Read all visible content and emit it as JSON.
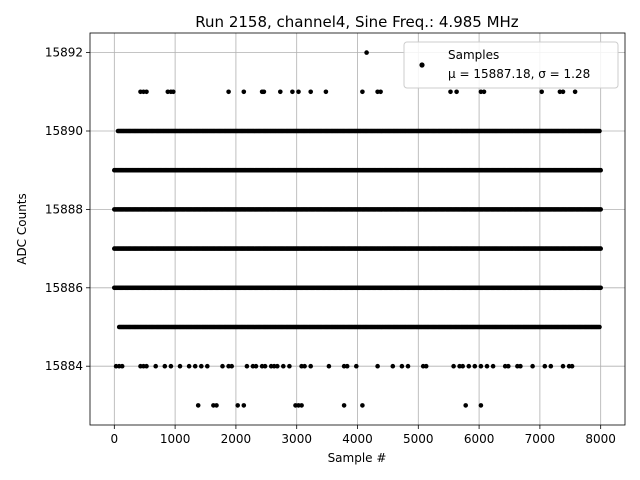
{
  "chart_data": {
    "type": "scatter",
    "title": "Run 2158, channel4, Sine Freq.: 4.985 MHz",
    "xlabel": "Sample #",
    "ylabel": "ADC Counts",
    "xlim": [
      -400,
      8400
    ],
    "ylim": [
      15882.5,
      15892.5
    ],
    "xticks": [
      0,
      1000,
      2000,
      3000,
      4000,
      5000,
      6000,
      7000,
      8000
    ],
    "xtick_labels": [
      "0",
      "1000",
      "2000",
      "3000",
      "4000",
      "5000",
      "6000",
      "7000",
      "8000"
    ],
    "yticks": [
      15884,
      15886,
      15888,
      15890,
      15892
    ],
    "ytick_labels": [
      "15884",
      "15886",
      "15888",
      "15890",
      "15892"
    ],
    "grid": true,
    "legend_position": "top-right",
    "marker_color": "#000000",
    "series": [
      {
        "name": "Samples",
        "stats_label": "μ = 15887.18, σ = 1.28",
        "x_range": [
          0,
          8000
        ],
        "dense_levels": [
          {
            "y": 15885,
            "x_start": 80,
            "x_end": 7980
          },
          {
            "y": 15886,
            "x_start": 0,
            "x_end": 8000
          },
          {
            "y": 15887,
            "x_start": 0,
            "x_end": 8000
          },
          {
            "y": 15888,
            "x_start": 0,
            "x_end": 8000
          },
          {
            "y": 15889,
            "x_start": 0,
            "x_end": 8000
          },
          {
            "y": 15890,
            "x_start": 60,
            "x_end": 7990
          }
        ],
        "sparse_points": {
          "15892": [
            4150
          ],
          "15891": [
            430,
            480,
            530,
            880,
            930,
            970,
            1880,
            2130,
            2430,
            2460,
            2730,
            2930,
            3030,
            3230,
            3480,
            4080,
            4330,
            4380,
            5530,
            5630,
            6030,
            6080,
            7030,
            7330,
            7380,
            7580
          ],
          "15884": [
            30,
            80,
            130,
            430,
            480,
            530,
            680,
            830,
            930,
            1080,
            1230,
            1330,
            1430,
            1530,
            1780,
            1880,
            1930,
            2180,
            2280,
            2330,
            2430,
            2480,
            2580,
            2630,
            2680,
            2780,
            2880,
            3080,
            3130,
            3230,
            3530,
            3780,
            3830,
            3980,
            4330,
            4580,
            4730,
            4830,
            5080,
            5130,
            5580,
            5680,
            5730,
            5830,
            5930,
            6030,
            6130,
            6230,
            6430,
            6480,
            6630,
            6680,
            6880,
            7080,
            7180,
            7380,
            7480,
            7530
          ],
          "15883": [
            1380,
            1630,
            1680,
            2030,
            2130,
            2980,
            3030,
            3080,
            3780,
            4080,
            5780,
            6030
          ]
        }
      }
    ]
  }
}
